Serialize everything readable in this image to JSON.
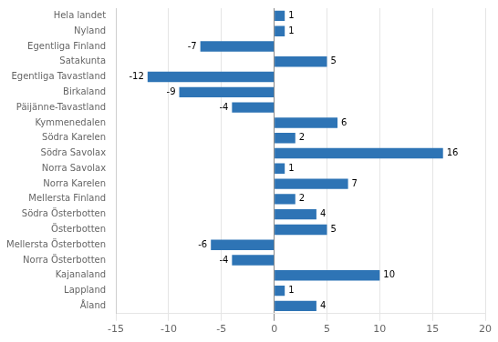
{
  "chart_data": {
    "type": "bar",
    "orientation": "horizontal",
    "categories": [
      "Hela landet",
      "Nyland",
      "Egentliga Finland",
      "Satakunta",
      "Egentliga Tavastland",
      "Birkaland",
      "Päijänne-Tavastland",
      "Kymmenedalen",
      "Södra Karelen",
      "Södra Savolax",
      "Norra Savolax",
      "Norra Karelen",
      "Mellersta Finland",
      "Södra Österbotten",
      "Österbotten",
      "Mellersta Österbotten",
      "Norra Österbotten",
      "Kajanaland",
      "Lappland",
      "Åland"
    ],
    "values": [
      1,
      1,
      -7,
      5,
      -12,
      -9,
      -4,
      6,
      2,
      16,
      1,
      7,
      2,
      4,
      5,
      -6,
      -4,
      10,
      1,
      4
    ],
    "color": "#2E74B5",
    "xlim": [
      -15,
      20
    ],
    "xticks": [
      -15,
      -10,
      -5,
      0,
      5,
      10,
      15,
      20
    ],
    "grid": true,
    "data_labels": true
  }
}
